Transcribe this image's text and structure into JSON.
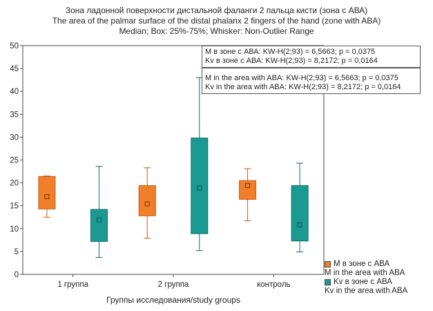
{
  "chart_data": {
    "type": "box",
    "title_ru": "Зона ладонной поверхности дистальной фаланги 2 пальца кисти (зона с АВА)",
    "title_en": "The area of the palmar surface of the distal phalanx 2 fingers of the hand (zone with ABA)",
    "subtitle": "Median; Box: 25%-75%; Whisker: Non-Outlier Range",
    "xlabel": "Группы исследования/study groups",
    "ylabel": "",
    "ylim": [
      0,
      50
    ],
    "yticks": [
      "0",
      "5",
      "10",
      "15",
      "20",
      "25",
      "30",
      "35",
      "40",
      "45",
      "50"
    ],
    "categories": [
      "1 группа",
      "2 группа",
      "контроль"
    ],
    "series": [
      {
        "name": "M в зоне с АВА",
        "name_en": "M in the area with ABA",
        "color": "#f07f2a",
        "edge": "#c8561a",
        "data": [
          {
            "median": 17.0,
            "q1": 14.3,
            "q3": 21.4,
            "min": 12.5,
            "max": 21.5
          },
          {
            "median": 15.4,
            "q1": 12.8,
            "q3": 19.4,
            "min": 7.9,
            "max": 23.3
          },
          {
            "median": 19.4,
            "q1": 16.4,
            "q3": 20.5,
            "min": 11.7,
            "max": 23.1
          }
        ]
      },
      {
        "name": "Kv в зоне с АВА",
        "name_en": "Kv in the area with ABA",
        "color": "#1a9a92",
        "edge": "#0f6a64",
        "data": [
          {
            "median": 11.9,
            "q1": 7.2,
            "q3": 14.2,
            "min": 3.7,
            "max": 23.6
          },
          {
            "median": 18.9,
            "q1": 8.9,
            "q3": 29.8,
            "min": 5.2,
            "max": 43.0
          },
          {
            "median": 10.8,
            "q1": 7.3,
            "q3": 19.4,
            "min": 4.9,
            "max": 24.3
          }
        ]
      }
    ],
    "annotations": {
      "line1": "M в зоне с АВА:  KW-H(2;93) = 6,5663; p = 0,0375",
      "line2": "Kv в зоне с АВА:  KW-H(2;93) = 8,2172; p = 0,0164",
      "line3": "M in the area with ABA: KW-H(2;93) = 6,5663; p = 0,0375",
      "line4": "Kv in the area with ABA: KW-H(2;93) = 8,2172; p = 0,0164"
    },
    "legend_position": "bottom-right"
  }
}
